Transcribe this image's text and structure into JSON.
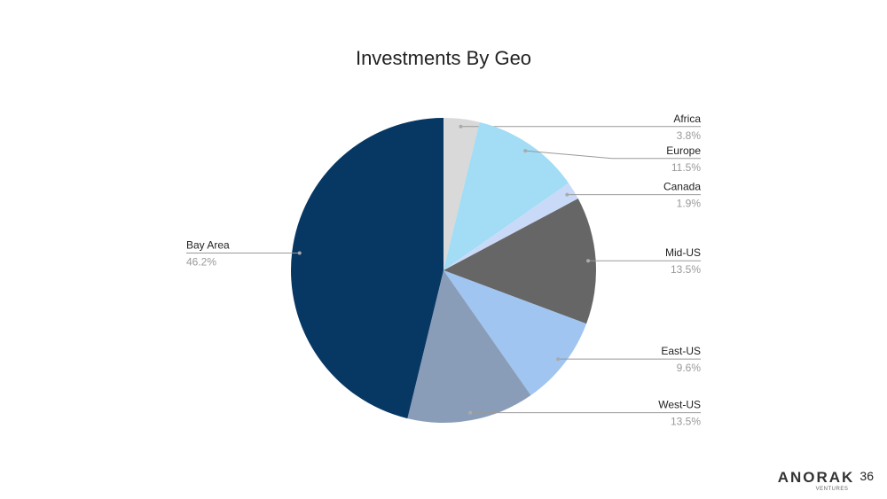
{
  "chart_data": {
    "type": "pie",
    "title": "Investments By Geo",
    "categories": [
      "Africa",
      "Europe",
      "Canada",
      "Mid-US",
      "East-US",
      "West-US",
      "Bay Area"
    ],
    "values": [
      3.8,
      11.5,
      1.9,
      13.5,
      9.6,
      13.5,
      46.2
    ],
    "value_labels": [
      "3.8%",
      "11.5%",
      "1.9%",
      "13.5%",
      "9.6%",
      "13.5%",
      "46.2%"
    ],
    "colors": [
      "#d9d9d9",
      "#a2dcf5",
      "#c9daf8",
      "#666666",
      "#9fc5f0",
      "#8a9db8",
      "#073763"
    ]
  },
  "footer": {
    "logo": "ANORAK",
    "logo_sub": "VENTURES",
    "page": "36"
  }
}
